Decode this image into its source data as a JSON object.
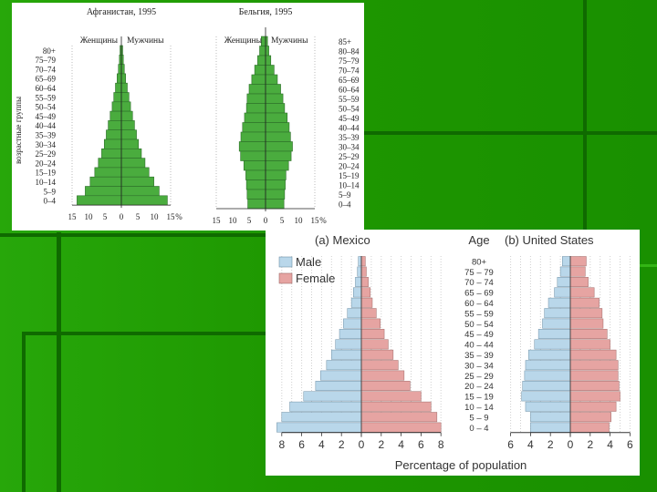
{
  "slide": {
    "background_color": "#1f9a00",
    "panel_background": "#ffffff"
  },
  "chart_data": [
    {
      "type": "bar",
      "subtype": "population-pyramid",
      "title": "Афганистан, 1995",
      "left_label": "Женщины",
      "right_label": "Мужчины",
      "ylabel": "возрастные группы",
      "age_groups": [
        "80+",
        "75–79",
        "70–74",
        "65–69",
        "60–64",
        "55–59",
        "50–54",
        "45–49",
        "40–44",
        "35–39",
        "30–34",
        "25–29",
        "20–24",
        "15–19",
        "10–14",
        "5–9",
        "0–4"
      ],
      "series": [
        {
          "name": "Женщины",
          "values": [
            0.4,
            0.6,
            0.9,
            1.3,
            1.8,
            2.3,
            2.8,
            3.4,
            4.0,
            4.6,
            5.2,
            6.0,
            7.0,
            8.1,
            9.5,
            11.0,
            13.5
          ]
        },
        {
          "name": "Мужчины",
          "values": [
            0.4,
            0.6,
            0.9,
            1.3,
            1.8,
            2.3,
            2.8,
            3.4,
            4.0,
            4.6,
            5.2,
            6.1,
            7.2,
            8.4,
            9.9,
            11.5,
            14.0
          ]
        }
      ],
      "x_ticks": [
        "15",
        "10",
        "5",
        "0",
        "5",
        "10",
        "15",
        "%"
      ],
      "xlim": [
        -15,
        15
      ],
      "bar_color": "#4aac3e"
    },
    {
      "type": "bar",
      "subtype": "population-pyramid",
      "title": "Бельгия, 1995",
      "left_label": "Женщины",
      "right_label": "Мужчины",
      "age_groups": [
        "85+",
        "80–84",
        "75–79",
        "70–74",
        "65–69",
        "60–64",
        "55–59",
        "50–54",
        "45–49",
        "40–44",
        "35–39",
        "30–34",
        "25–29",
        "20–24",
        "15–19",
        "10–14",
        "5–9",
        "0–4"
      ],
      "series": [
        {
          "name": "Женщины",
          "values": [
            1.3,
            1.8,
            2.4,
            3.3,
            4.2,
            5.0,
            5.6,
            5.8,
            6.4,
            7.0,
            7.5,
            8.0,
            7.6,
            6.6,
            6.0,
            5.8,
            5.6,
            5.4
          ]
        },
        {
          "name": "Мужчины",
          "values": [
            0.6,
            1.0,
            1.6,
            2.6,
            3.6,
            4.6,
            5.3,
            5.8,
            6.6,
            7.2,
            7.6,
            8.2,
            7.8,
            7.0,
            6.2,
            6.0,
            5.8,
            5.6
          ]
        }
      ],
      "x_ticks": [
        "15",
        "10",
        "5",
        "0",
        "5",
        "10",
        "15",
        "%"
      ],
      "xlim": [
        -15,
        15
      ],
      "bar_color": "#4aac3e"
    },
    {
      "type": "bar",
      "subtype": "population-pyramid",
      "title": "(a) Mexico",
      "age_header": "Age",
      "legend": [
        "Male",
        "Female"
      ],
      "xlabel": "Percentage of population",
      "age_groups": [
        "80+",
        "75 – 79",
        "70 – 74",
        "65 – 69",
        "60 – 64",
        "55 – 59",
        "50 – 54",
        "45 – 49",
        "40 – 44",
        "35 – 39",
        "30 – 34",
        "25 – 29",
        "20 – 24",
        "15 – 19",
        "10 – 14",
        "5 – 9",
        "0 – 4"
      ],
      "series": [
        {
          "name": "Male",
          "values": [
            0.3,
            0.4,
            0.6,
            0.8,
            1.0,
            1.4,
            1.8,
            2.2,
            2.6,
            3.0,
            3.5,
            4.1,
            4.6,
            5.8,
            7.2,
            8.0,
            8.5
          ]
        },
        {
          "name": "Female",
          "values": [
            0.4,
            0.5,
            0.7,
            0.9,
            1.1,
            1.5,
            1.9,
            2.3,
            2.7,
            3.2,
            3.7,
            4.3,
            4.9,
            6.0,
            7.0,
            7.6,
            8.0
          ]
        }
      ],
      "x_ticks": [
        "8",
        "6",
        "4",
        "2",
        "0",
        "2",
        "4",
        "6",
        "8"
      ],
      "xlim": [
        -8,
        8
      ],
      "colors": {
        "Male": "#b9d7ea",
        "Female": "#e6a4a2"
      }
    },
    {
      "type": "bar",
      "subtype": "population-pyramid",
      "title": "(b) United States",
      "legend": [
        "Male",
        "Female"
      ],
      "xlabel": "Percentage of population",
      "age_groups": [
        "80+",
        "75 – 79",
        "70 – 74",
        "65 – 69",
        "60 – 64",
        "55 – 59",
        "50 – 54",
        "45 – 49",
        "40 – 44",
        "35 – 39",
        "30 – 34",
        "25 – 29",
        "20 – 24",
        "15 – 19",
        "10 – 14",
        "5 – 9",
        "0 – 4"
      ],
      "series": [
        {
          "name": "Male",
          "values": [
            0.8,
            1.0,
            1.3,
            1.6,
            2.2,
            2.6,
            2.8,
            3.2,
            3.6,
            4.2,
            4.5,
            4.6,
            4.8,
            4.9,
            4.5,
            4.0,
            4.0
          ]
        },
        {
          "name": "Female",
          "values": [
            1.6,
            1.5,
            1.8,
            2.4,
            2.9,
            3.2,
            3.3,
            3.7,
            4.0,
            4.6,
            4.8,
            4.8,
            4.9,
            5.0,
            4.6,
            4.1,
            3.9
          ]
        }
      ],
      "x_ticks": [
        "6",
        "4",
        "2",
        "0",
        "2",
        "4",
        "6"
      ],
      "xlim": [
        -6,
        6
      ],
      "colors": {
        "Male": "#b9d7ea",
        "Female": "#e6a4a2"
      }
    }
  ]
}
